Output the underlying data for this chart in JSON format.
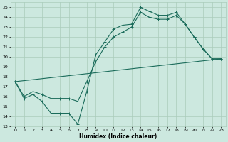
{
  "xlabel": "Humidex (Indice chaleur)",
  "bg_color": "#cce8df",
  "grid_color": "#aaccbb",
  "line_color": "#1a6b5a",
  "xlim": [
    -0.5,
    23.5
  ],
  "ylim": [
    13,
    25.5
  ],
  "yticks": [
    13,
    14,
    15,
    16,
    17,
    18,
    19,
    20,
    21,
    22,
    23,
    24,
    25
  ],
  "xticks": [
    0,
    1,
    2,
    3,
    4,
    5,
    6,
    7,
    8,
    9,
    10,
    11,
    12,
    13,
    14,
    15,
    16,
    17,
    18,
    19,
    20,
    21,
    22,
    23
  ],
  "line1_x": [
    0,
    1,
    2,
    3,
    4,
    5,
    6,
    7,
    8,
    9,
    10,
    11,
    12,
    13,
    14,
    15,
    16,
    17,
    18,
    19,
    20,
    21,
    22,
    23
  ],
  "line1_y": [
    17.5,
    15.8,
    16.2,
    15.5,
    14.3,
    14.3,
    14.3,
    13.2,
    16.5,
    20.2,
    21.5,
    22.8,
    23.2,
    23.3,
    25.0,
    24.6,
    24.2,
    24.2,
    24.5,
    23.3,
    22.0,
    20.8,
    19.8,
    19.8
  ],
  "line2_x": [
    0,
    1,
    2,
    3,
    4,
    5,
    6,
    7,
    8,
    9,
    10,
    11,
    12,
    13,
    14,
    15,
    16,
    17,
    18,
    19,
    20,
    21,
    22,
    23
  ],
  "line2_y": [
    17.5,
    16.0,
    16.5,
    16.2,
    15.8,
    15.8,
    15.8,
    15.5,
    17.5,
    19.5,
    21.0,
    22.0,
    22.5,
    23.0,
    24.5,
    24.0,
    23.8,
    23.8,
    24.2,
    23.3,
    22.0,
    20.8,
    19.8,
    19.8
  ],
  "line3_x": [
    0,
    23
  ],
  "line3_y": [
    17.5,
    19.8
  ]
}
